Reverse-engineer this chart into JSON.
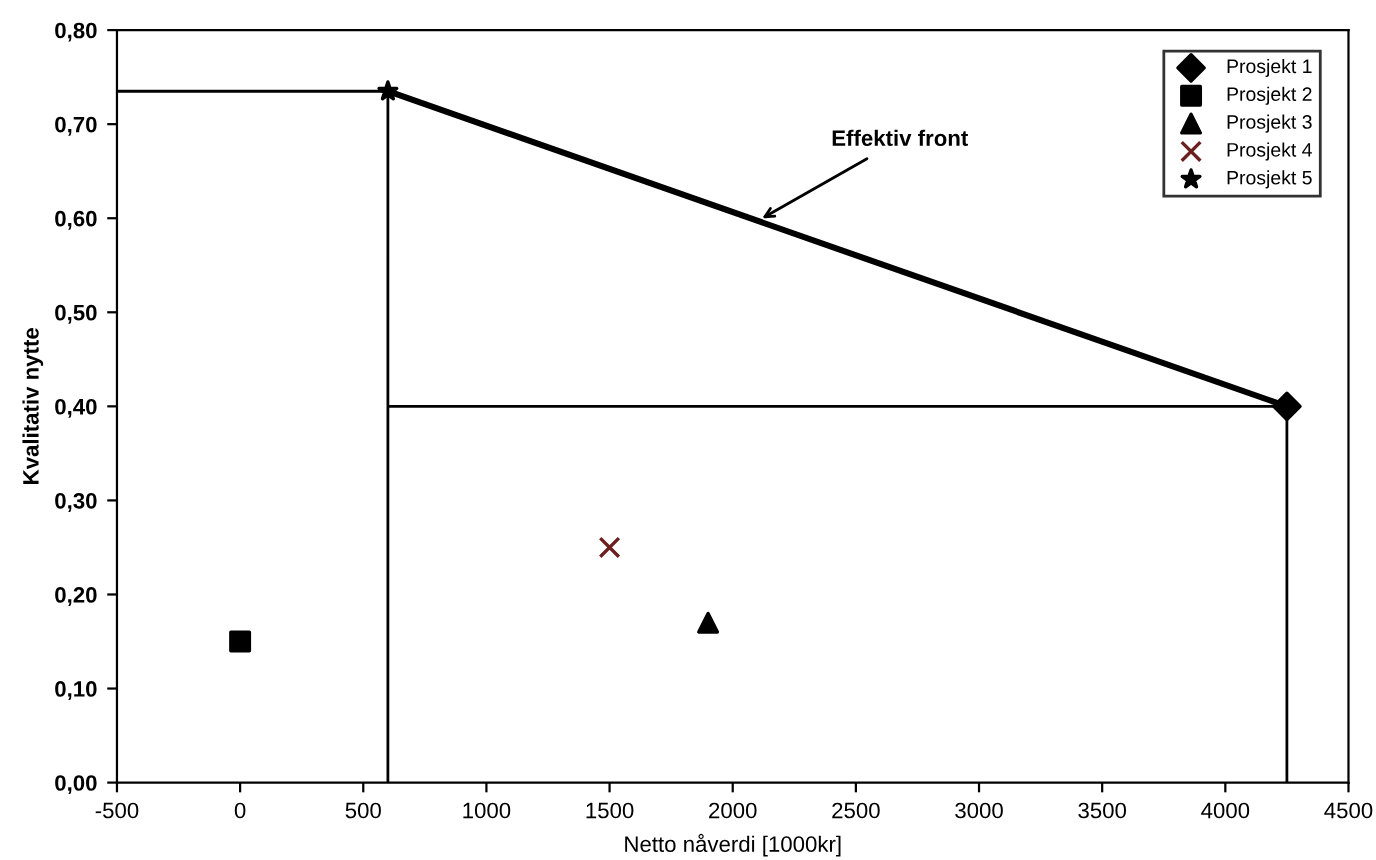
{
  "chart_data": {
    "type": "scatter",
    "xlabel": "Netto nåverdi [1000kr]",
    "ylabel": "Kvalitativ nytte",
    "xlim": [
      -500,
      4500
    ],
    "xticks": [
      -500,
      0,
      500,
      1000,
      1500,
      2000,
      2500,
      3000,
      3500,
      4000,
      4500
    ],
    "ylim": [
      0,
      0.8
    ],
    "yticks": [
      {
        "value": 0,
        "label": "0,00"
      },
      {
        "value": 0.1,
        "label": "0,10"
      },
      {
        "value": 0.2,
        "label": "0,20"
      },
      {
        "value": 0.3,
        "label": "0,30"
      },
      {
        "value": 0.4,
        "label": "0,40"
      },
      {
        "value": 0.5,
        "label": "0,50"
      },
      {
        "value": 0.6,
        "label": "0,60"
      },
      {
        "value": 0.7,
        "label": "0,70"
      },
      {
        "value": 0.8,
        "label": "0,80"
      }
    ],
    "grid": false,
    "legend": "top right",
    "series": [
      {
        "type": "line",
        "color": "#000000",
        "x": [
          600,
          4250
        ],
        "values": [
          0.735,
          0.4
        ],
        "line_style": "solid",
        "marker": "none"
      },
      {
        "type": "line",
        "color": "#000000",
        "x": [
          -500,
          600,
          600,
          null,
          600,
          4250,
          4250
        ],
        "values": [
          0.735,
          0.735,
          0,
          null,
          0.4,
          0.4,
          0
        ],
        "line_style": "solid",
        "marker": "none"
      },
      {
        "name": "Prosjekt 1",
        "color": "#000000",
        "marker": "diamond",
        "x": [
          4250
        ],
        "values": [
          0.4
        ]
      },
      {
        "name": "Prosjekt 2",
        "color": "#000000",
        "marker": "square",
        "x": [
          0
        ],
        "values": [
          0.15
        ]
      },
      {
        "name": "Prosjekt 3",
        "color": "#000000",
        "marker": "triangle",
        "x": [
          1900
        ],
        "values": [
          0.17
        ]
      },
      {
        "name": "Prosjekt 4",
        "color": "#6b1f1f",
        "marker": "cross",
        "x": [
          1500
        ],
        "values": [
          0.25
        ]
      },
      {
        "name": "Prosjekt 5",
        "color": "#000000",
        "marker": "star",
        "x": [
          600
        ],
        "values": [
          0.735
        ]
      }
    ],
    "annotations": [
      {
        "text": "Effektiv front",
        "x": 2100,
        "y": 0.597
      }
    ]
  }
}
